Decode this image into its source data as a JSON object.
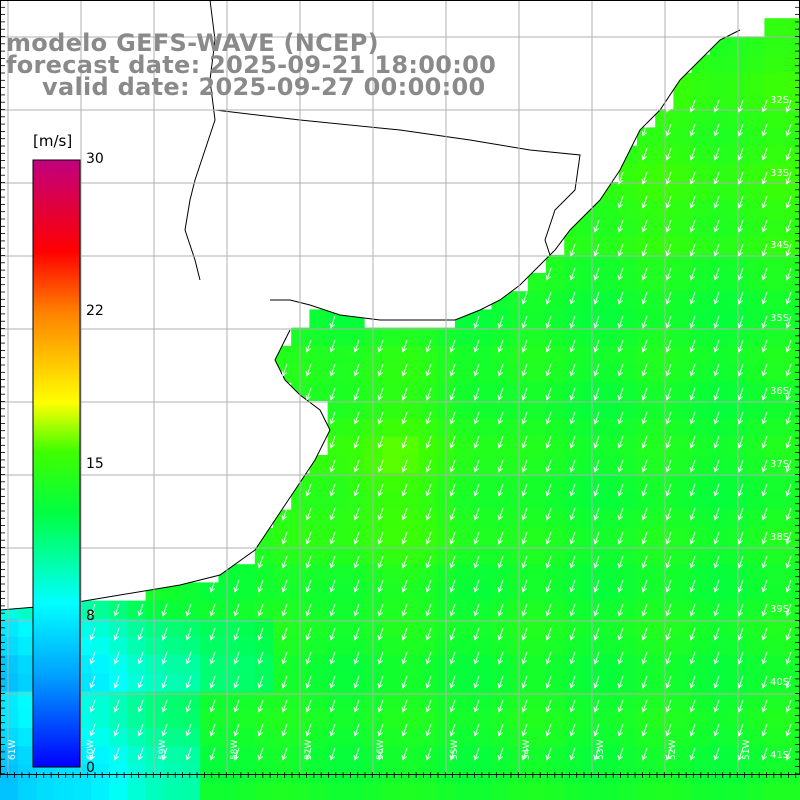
{
  "title": {
    "line1": "modelo GEFS-WAVE (NCEP)",
    "line2": "forecast date: 2025-09-21 18:00:00",
    "line3": "valid date: 2025-09-27 00:00:00"
  },
  "colorbar": {
    "unit": "[m/s]",
    "min": 0,
    "max": 30,
    "ticks": [
      "30",
      "22",
      "15",
      "8",
      "0"
    ],
    "colors": [
      "#0000ff",
      "#00bfff",
      "#00ffff",
      "#00ff00",
      "#80ff00",
      "#ffff00",
      "#ff8000",
      "#ff0000",
      "#c00080"
    ]
  },
  "map": {
    "field": "wind speed",
    "arrow_direction": "toward southwest",
    "lat_labels": [
      "32S",
      "33S",
      "34S",
      "35S",
      "36S",
      "37S",
      "38S",
      "39S",
      "40S",
      "41S"
    ],
    "lon_labels": [
      "61W",
      "60W",
      "59W",
      "58W",
      "57W",
      "56W",
      "55W",
      "54W",
      "53W",
      "52W",
      "51W"
    ],
    "land_color": "#ffffff",
    "grid_color": "#b0b0b0"
  }
}
